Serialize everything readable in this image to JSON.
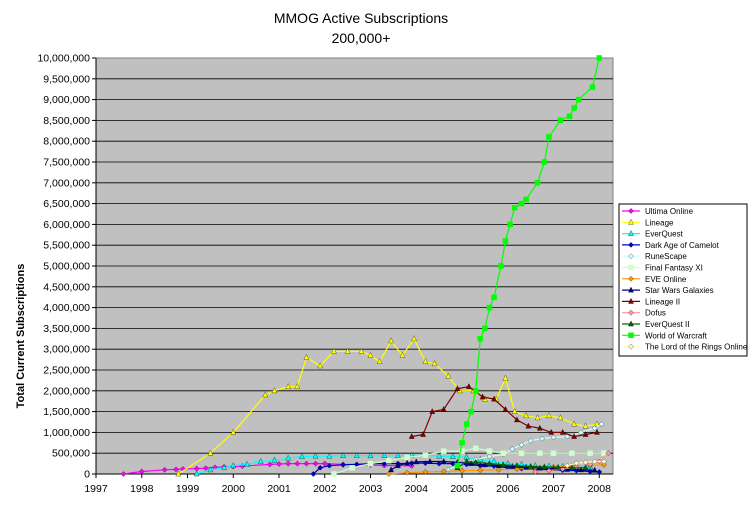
{
  "chart_data": {
    "type": "line",
    "title": "MMOG Active Subscriptions",
    "subtitle": "200,000+",
    "xlabel": "",
    "ylabel": "Total Current Subscriptions",
    "xlim": [
      1997,
      2008.3
    ],
    "ylim": [
      0,
      10000000
    ],
    "x_ticks": [
      1997,
      1998,
      1999,
      2000,
      2001,
      2002,
      2003,
      2004,
      2005,
      2006,
      2007,
      2008
    ],
    "x_tick_labels": [
      "1997",
      "1998",
      "1999",
      "2000",
      "2001",
      "2002",
      "2003",
      "2004",
      "2005",
      "2006",
      "2007",
      "2008"
    ],
    "y_ticks": [
      0,
      500000,
      1000000,
      1500000,
      2000000,
      2500000,
      3000000,
      3500000,
      4000000,
      4500000,
      5000000,
      5500000,
      6000000,
      6500000,
      7000000,
      7500000,
      8000000,
      8500000,
      9000000,
      9500000,
      10000000
    ],
    "y_tick_labels": [
      "0",
      "500,000",
      "1,000,000",
      "1,500,000",
      "2,000,000",
      "2,500,000",
      "3,000,000",
      "3,500,000",
      "4,000,000",
      "4,500,000",
      "5,000,000",
      "5,500,000",
      "6,000,000",
      "6,500,000",
      "7,000,000",
      "7,500,000",
      "8,000,000",
      "8,500,000",
      "9,000,000",
      "9,500,000",
      "10,000,000"
    ],
    "grid": true,
    "plot_background": "#c0c0c0",
    "legend_position": "right",
    "series": [
      {
        "name": "Ultima Online",
        "color": "#ff00ff",
        "marker": "diamond",
        "points": [
          [
            1997.6,
            0
          ],
          [
            1998.0,
            60000
          ],
          [
            1998.5,
            100000
          ],
          [
            1998.75,
            110000
          ],
          [
            1998.9,
            120000
          ],
          [
            1999.2,
            130000
          ],
          [
            1999.4,
            140000
          ],
          [
            1999.6,
            160000
          ],
          [
            1999.8,
            170000
          ],
          [
            2000.0,
            180000
          ],
          [
            2000.2,
            190000
          ],
          [
            2000.8,
            230000
          ],
          [
            2001.0,
            240000
          ],
          [
            2001.2,
            250000
          ],
          [
            2001.4,
            250000
          ],
          [
            2001.6,
            250000
          ],
          [
            2001.8,
            250000
          ],
          [
            2002.0,
            250000
          ],
          [
            2002.4,
            230000
          ],
          [
            2002.7,
            225000
          ],
          [
            2003.0,
            215000
          ],
          [
            2003.3,
            205000
          ],
          [
            2003.6,
            200000
          ],
          [
            2003.9,
            195000
          ]
        ]
      },
      {
        "name": "Lineage",
        "color": "#ffff00",
        "marker": "triangle",
        "points": [
          [
            1998.8,
            0
          ],
          [
            1999.5,
            500000
          ],
          [
            2000.0,
            1000000
          ],
          [
            2000.7,
            1900000
          ],
          [
            2000.9,
            2000000
          ],
          [
            2001.2,
            2100000
          ],
          [
            2001.4,
            2100000
          ],
          [
            2001.6,
            2800000
          ],
          [
            2001.9,
            2600000
          ],
          [
            2002.2,
            2950000
          ],
          [
            2002.5,
            2950000
          ],
          [
            2002.8,
            2950000
          ],
          [
            2003.0,
            2850000
          ],
          [
            2003.2,
            2700000
          ],
          [
            2003.45,
            3200000
          ],
          [
            2003.7,
            2850000
          ],
          [
            2003.95,
            3250000
          ],
          [
            2004.2,
            2700000
          ],
          [
            2004.4,
            2650000
          ],
          [
            2004.7,
            2350000
          ],
          [
            2004.95,
            2000000
          ],
          [
            2005.25,
            2000000
          ],
          [
            2005.5,
            1800000
          ],
          [
            2005.75,
            1800000
          ],
          [
            2005.95,
            2300000
          ],
          [
            2006.15,
            1500000
          ],
          [
            2006.4,
            1400000
          ],
          [
            2006.65,
            1350000
          ],
          [
            2006.9,
            1400000
          ],
          [
            2007.15,
            1350000
          ],
          [
            2007.45,
            1200000
          ],
          [
            2007.7,
            1150000
          ],
          [
            2007.95,
            1200000
          ]
        ]
      },
      {
        "name": "EverQuest",
        "color": "#00ffff",
        "marker": "triangle",
        "points": [
          [
            1999.2,
            0
          ],
          [
            1999.5,
            100000
          ],
          [
            1999.8,
            150000
          ],
          [
            2000.0,
            200000
          ],
          [
            2000.3,
            230000
          ],
          [
            2000.6,
            300000
          ],
          [
            2000.9,
            330000
          ],
          [
            2001.2,
            380000
          ],
          [
            2001.5,
            420000
          ],
          [
            2001.8,
            430000
          ],
          [
            2002.1,
            430000
          ],
          [
            2002.4,
            440000
          ],
          [
            2002.7,
            440000
          ],
          [
            2003.0,
            440000
          ],
          [
            2003.3,
            440000
          ],
          [
            2003.6,
            440000
          ],
          [
            2003.9,
            450000
          ],
          [
            2004.2,
            450000
          ],
          [
            2004.5,
            430000
          ],
          [
            2004.8,
            420000
          ],
          [
            2005.1,
            400000
          ],
          [
            2005.4,
            350000
          ],
          [
            2005.7,
            300000
          ],
          [
            2006.0,
            250000
          ],
          [
            2006.3,
            230000
          ],
          [
            2006.6,
            200000
          ],
          [
            2006.9,
            190000
          ],
          [
            2007.2,
            180000
          ],
          [
            2007.5,
            175000
          ],
          [
            2007.8,
            175000
          ]
        ]
      },
      {
        "name": "Dark Age of Camelot",
        "color": "#0000cc",
        "marker": "diamond",
        "points": [
          [
            2001.75,
            0
          ],
          [
            2001.9,
            150000
          ],
          [
            2002.1,
            200000
          ],
          [
            2002.4,
            220000
          ],
          [
            2002.7,
            230000
          ],
          [
            2003.0,
            250000
          ],
          [
            2003.3,
            250000
          ],
          [
            2003.6,
            250000
          ],
          [
            2003.9,
            260000
          ],
          [
            2004.2,
            260000
          ],
          [
            2004.5,
            250000
          ],
          [
            2004.8,
            250000
          ],
          [
            2005.1,
            230000
          ],
          [
            2005.4,
            200000
          ],
          [
            2005.7,
            190000
          ],
          [
            2006.0,
            150000
          ],
          [
            2006.3,
            130000
          ],
          [
            2006.6,
            120000
          ],
          [
            2006.9,
            100000
          ],
          [
            2007.2,
            90000
          ],
          [
            2007.5,
            80000
          ],
          [
            2007.8,
            60000
          ],
          [
            2008.0,
            50000
          ]
        ]
      },
      {
        "name": "RuneScape",
        "color": "#ccffff",
        "marker": "diamond",
        "points": [
          [
            2004.7,
            100000
          ],
          [
            2005.0,
            250000
          ],
          [
            2005.3,
            350000
          ],
          [
            2005.6,
            420000
          ],
          [
            2005.9,
            470000
          ],
          [
            2006.1,
            600000
          ],
          [
            2006.3,
            700000
          ],
          [
            2006.5,
            800000
          ],
          [
            2006.75,
            850000
          ],
          [
            2007.0,
            880000
          ],
          [
            2007.3,
            900000
          ],
          [
            2007.6,
            1000000
          ],
          [
            2007.9,
            1100000
          ],
          [
            2008.05,
            1200000
          ]
        ]
      },
      {
        "name": "Final Fantasy XI",
        "color": "#ccffcc",
        "marker": "square",
        "points": [
          [
            2002.2,
            0
          ],
          [
            2002.6,
            150000
          ],
          [
            2003.0,
            250000
          ],
          [
            2003.4,
            320000
          ],
          [
            2003.8,
            400000
          ],
          [
            2004.2,
            450000
          ],
          [
            2004.6,
            550000
          ],
          [
            2005.0,
            550000
          ],
          [
            2005.3,
            620000
          ],
          [
            2005.6,
            550000
          ],
          [
            2005.9,
            500000
          ],
          [
            2006.3,
            500000
          ],
          [
            2006.7,
            500000
          ],
          [
            2007.0,
            500000
          ],
          [
            2007.4,
            500000
          ],
          [
            2007.8,
            500000
          ],
          [
            2008.1,
            500000
          ]
        ]
      },
      {
        "name": "EVE Online",
        "color": "#ff9900",
        "marker": "diamond",
        "points": [
          [
            2003.4,
            0
          ],
          [
            2003.8,
            30000
          ],
          [
            2004.2,
            50000
          ],
          [
            2004.6,
            60000
          ],
          [
            2005.0,
            80000
          ],
          [
            2005.4,
            90000
          ],
          [
            2005.8,
            100000
          ],
          [
            2006.2,
            120000
          ],
          [
            2006.6,
            140000
          ],
          [
            2007.0,
            170000
          ],
          [
            2007.4,
            190000
          ],
          [
            2007.8,
            210000
          ],
          [
            2008.1,
            220000
          ]
        ]
      },
      {
        "name": "Star Wars Galaxies",
        "color": "#000080",
        "marker": "triangle",
        "points": [
          [
            2003.45,
            100000
          ],
          [
            2003.6,
            200000
          ],
          [
            2003.8,
            260000
          ],
          [
            2004.0,
            290000
          ],
          [
            2004.3,
            300000
          ],
          [
            2004.6,
            300000
          ],
          [
            2004.9,
            280000
          ],
          [
            2005.2,
            250000
          ],
          [
            2005.5,
            220000
          ],
          [
            2005.8,
            200000
          ],
          [
            2006.1,
            180000
          ],
          [
            2006.4,
            160000
          ],
          [
            2006.7,
            140000
          ],
          [
            2007.0,
            130000
          ],
          [
            2007.3,
            110000
          ],
          [
            2007.6,
            100000
          ],
          [
            2007.9,
            90000
          ]
        ]
      },
      {
        "name": "Lineage II",
        "color": "#800000",
        "marker": "triangle",
        "points": [
          [
            2003.9,
            900000
          ],
          [
            2004.15,
            950000
          ],
          [
            2004.35,
            1500000
          ],
          [
            2004.6,
            1550000
          ],
          [
            2004.9,
            2050000
          ],
          [
            2005.15,
            2100000
          ],
          [
            2005.45,
            1850000
          ],
          [
            2005.7,
            1800000
          ],
          [
            2005.95,
            1550000
          ],
          [
            2006.2,
            1300000
          ],
          [
            2006.45,
            1150000
          ],
          [
            2006.7,
            1100000
          ],
          [
            2006.95,
            1000000
          ],
          [
            2007.2,
            1000000
          ],
          [
            2007.45,
            900000
          ],
          [
            2007.7,
            950000
          ],
          [
            2007.95,
            1000000
          ]
        ]
      },
      {
        "name": "Dofus",
        "color": "#ff9999",
        "marker": "diamond",
        "points": [
          [
            2006.6,
            50000
          ],
          [
            2006.9,
            80000
          ],
          [
            2007.2,
            120000
          ],
          [
            2007.5,
            170000
          ],
          [
            2007.8,
            230000
          ],
          [
            2008.0,
            300000
          ],
          [
            2008.2,
            500000
          ]
        ]
      },
      {
        "name": "EverQuest II",
        "color": "#006600",
        "marker": "triangle",
        "points": [
          [
            2004.9,
            150000
          ],
          [
            2005.1,
            300000
          ],
          [
            2005.3,
            280000
          ],
          [
            2005.6,
            250000
          ],
          [
            2005.9,
            220000
          ],
          [
            2006.2,
            200000
          ],
          [
            2006.5,
            180000
          ],
          [
            2006.8,
            170000
          ],
          [
            2007.1,
            160000
          ],
          [
            2007.4,
            150000
          ],
          [
            2007.7,
            150000
          ]
        ]
      },
      {
        "name": "World of Warcraft",
        "color": "#00ff00",
        "marker": "square",
        "points": [
          [
            2004.9,
            200000
          ],
          [
            2005.0,
            750000
          ],
          [
            2005.1,
            1200000
          ],
          [
            2005.2,
            1500000
          ],
          [
            2005.3,
            2000000
          ],
          [
            2005.4,
            3250000
          ],
          [
            2005.5,
            3500000
          ],
          [
            2005.6,
            4000000
          ],
          [
            2005.7,
            4250000
          ],
          [
            2005.85,
            5000000
          ],
          [
            2005.95,
            5600000
          ],
          [
            2006.05,
            6000000
          ],
          [
            2006.15,
            6400000
          ],
          [
            2006.3,
            6500000
          ],
          [
            2006.4,
            6600000
          ],
          [
            2006.65,
            7000000
          ],
          [
            2006.8,
            7500000
          ],
          [
            2006.9,
            8100000
          ],
          [
            2007.15,
            8500000
          ],
          [
            2007.35,
            8600000
          ],
          [
            2007.45,
            8800000
          ],
          [
            2007.55,
            9000000
          ],
          [
            2007.85,
            9300000
          ],
          [
            2008.0,
            10000000
          ]
        ]
      },
      {
        "name": "The Lord of the Rings Online",
        "color": "#ffffcc",
        "marker": "diamond",
        "points": [
          [
            2007.3,
            200000
          ],
          [
            2007.5,
            260000
          ],
          [
            2007.7,
            280000
          ],
          [
            2007.9,
            300000
          ],
          [
            2008.1,
            300000
          ]
        ]
      }
    ]
  }
}
